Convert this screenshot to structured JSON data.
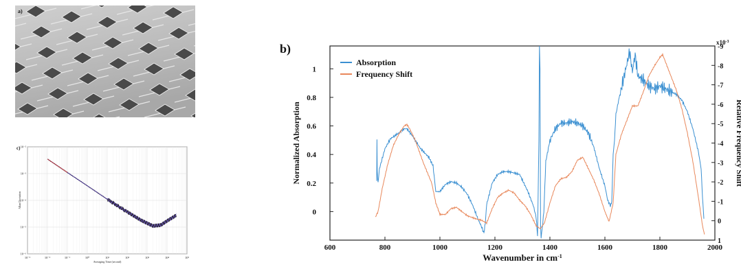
{
  "panel_a": {
    "label": "a)"
  },
  "panel_c": {
    "label": "c)"
  },
  "chart_data": [
    {
      "panel": "b)",
      "type": "line",
      "title": "",
      "xlabel": "Wavenumber in cm",
      "xlabel_sup": "-1",
      "ylabel": "Normalized Absorption",
      "y2label": "Relative Frequency Shift",
      "y2_multiplier": "x10",
      "y2_multiplier_sup": "-3",
      "xlim": [
        600,
        2000
      ],
      "ylim": [
        -0.2,
        1.16
      ],
      "y2lim": [
        1,
        -9
      ],
      "x_ticks": [
        "600",
        "800",
        "1000",
        "1200",
        "1400",
        "1600",
        "1800",
        "2000"
      ],
      "y_ticks": [
        "0",
        "0.2",
        "0.4",
        "0.6",
        "0.8",
        "1"
      ],
      "y2_ticks": [
        "1",
        "0",
        "-1",
        "-2",
        "-3",
        "-4",
        "-5",
        "-6",
        "-7",
        "-8",
        "-9"
      ],
      "legend_position": "top-left",
      "series": [
        {
          "name": "Absorption",
          "color": "#3a8fd1",
          "axis": "left",
          "x": [
            770,
            771,
            772,
            775,
            780,
            800,
            820,
            850,
            870,
            880,
            900,
            930,
            960,
            975,
            985,
            1000,
            1020,
            1040,
            1060,
            1080,
            1100,
            1120,
            1140,
            1150,
            1160,
            1165,
            1170,
            1190,
            1210,
            1230,
            1250,
            1270,
            1290,
            1300,
            1320,
            1340,
            1350,
            1355,
            1360,
            1362,
            1364,
            1366,
            1368,
            1372,
            1378,
            1385,
            1400,
            1420,
            1440,
            1460,
            1480,
            1500,
            1520,
            1540,
            1560,
            1580,
            1600,
            1610,
            1620,
            1625,
            1630,
            1635,
            1640,
            1650,
            1670,
            1690,
            1700,
            1710,
            1720,
            1740,
            1760,
            1780,
            1800,
            1820,
            1840,
            1860,
            1880,
            1900,
            1920,
            1940,
            1950,
            1955,
            1960
          ],
          "y": [
            0.22,
            0.5,
            0.28,
            0.2,
            0.3,
            0.44,
            0.51,
            0.55,
            0.58,
            0.58,
            0.53,
            0.44,
            0.38,
            0.32,
            0.14,
            0.14,
            0.19,
            0.21,
            0.2,
            0.17,
            0.12,
            0.04,
            -0.06,
            -0.1,
            -0.15,
            -0.08,
            0.05,
            0.2,
            0.26,
            0.28,
            0.28,
            0.27,
            0.26,
            0.22,
            0.14,
            0.04,
            -0.04,
            -0.17,
            0.5,
            1.2,
            1.0,
            -0.1,
            -0.18,
            -0.12,
            0.0,
            0.35,
            0.5,
            0.58,
            0.62,
            0.62,
            0.63,
            0.62,
            0.6,
            0.55,
            0.45,
            0.3,
            0.18,
            0.08,
            0.04,
            0.07,
            0.4,
            0.5,
            0.68,
            0.78,
            0.95,
            1.12,
            0.98,
            1.1,
            0.95,
            0.92,
            0.88,
            0.86,
            0.88,
            0.86,
            0.84,
            0.82,
            0.78,
            0.7,
            0.58,
            0.42,
            0.3,
            0.1,
            -0.05
          ]
        },
        {
          "name": "Frequency Shift",
          "color": "#e8875a",
          "axis": "left",
          "x": [
            765,
            775,
            790,
            810,
            830,
            850,
            870,
            880,
            890,
            910,
            940,
            970,
            985,
            1000,
            1020,
            1040,
            1060,
            1080,
            1100,
            1130,
            1150,
            1170,
            1190,
            1210,
            1230,
            1250,
            1270,
            1290,
            1310,
            1330,
            1350,
            1365,
            1380,
            1400,
            1420,
            1440,
            1460,
            1480,
            1500,
            1520,
            1540,
            1560,
            1580,
            1600,
            1615,
            1630,
            1640,
            1660,
            1700,
            1720,
            1740,
            1760,
            1780,
            1800,
            1810,
            1820,
            1830,
            1860,
            1880,
            1900,
            1920,
            1940,
            1955,
            1962
          ],
          "y": [
            -0.04,
            0.0,
            0.16,
            0.33,
            0.46,
            0.54,
            0.6,
            0.61,
            0.58,
            0.5,
            0.34,
            0.2,
            0.06,
            -0.02,
            -0.02,
            0.02,
            0.03,
            0.0,
            -0.03,
            -0.05,
            -0.06,
            -0.08,
            0.02,
            0.1,
            0.13,
            0.15,
            0.13,
            0.08,
            0.04,
            -0.02,
            -0.1,
            -0.12,
            -0.08,
            0.06,
            0.18,
            0.23,
            0.24,
            0.28,
            0.36,
            0.38,
            0.3,
            0.22,
            0.12,
            0.0,
            -0.07,
            0.06,
            0.4,
            0.54,
            0.74,
            0.74,
            0.84,
            0.95,
            1.02,
            1.08,
            1.1,
            1.05,
            1.0,
            0.85,
            0.72,
            0.55,
            0.35,
            0.1,
            -0.1,
            -0.16
          ]
        }
      ]
    },
    {
      "panel": "c)",
      "type": "line",
      "title": "",
      "xlabel": "Averaging Time (second)",
      "ylabel": "Allan Deviation",
      "x_scale": "log",
      "y_scale": "log",
      "xlim": [
        0.001,
        100000
      ],
      "ylim": [
        1e-06,
        0.01
      ],
      "x_ticks": [
        "10⁻³",
        "10⁻²",
        "10⁻¹",
        "10⁰",
        "10¹",
        "10²",
        "10³",
        "10⁴",
        "10⁵"
      ],
      "y_ticks": [
        "10⁻²",
        "10⁻³",
        "10⁻⁴",
        "10⁻⁵",
        "10⁻⁶"
      ],
      "series": [
        {
          "name": "",
          "color": "#1a1a1a",
          "x": [
            0.01,
            0.1,
            1,
            10,
            100,
            500,
            1000,
            2000,
            5000,
            10000,
            30000
          ],
          "y": [
            0.0035,
            0.0011,
            0.00035,
            0.00011,
            3.7e-05,
            1.8e-05,
            1.4e-05,
            1.1e-05,
            1.2e-05,
            1.7e-05,
            2.8e-05
          ]
        }
      ]
    }
  ]
}
